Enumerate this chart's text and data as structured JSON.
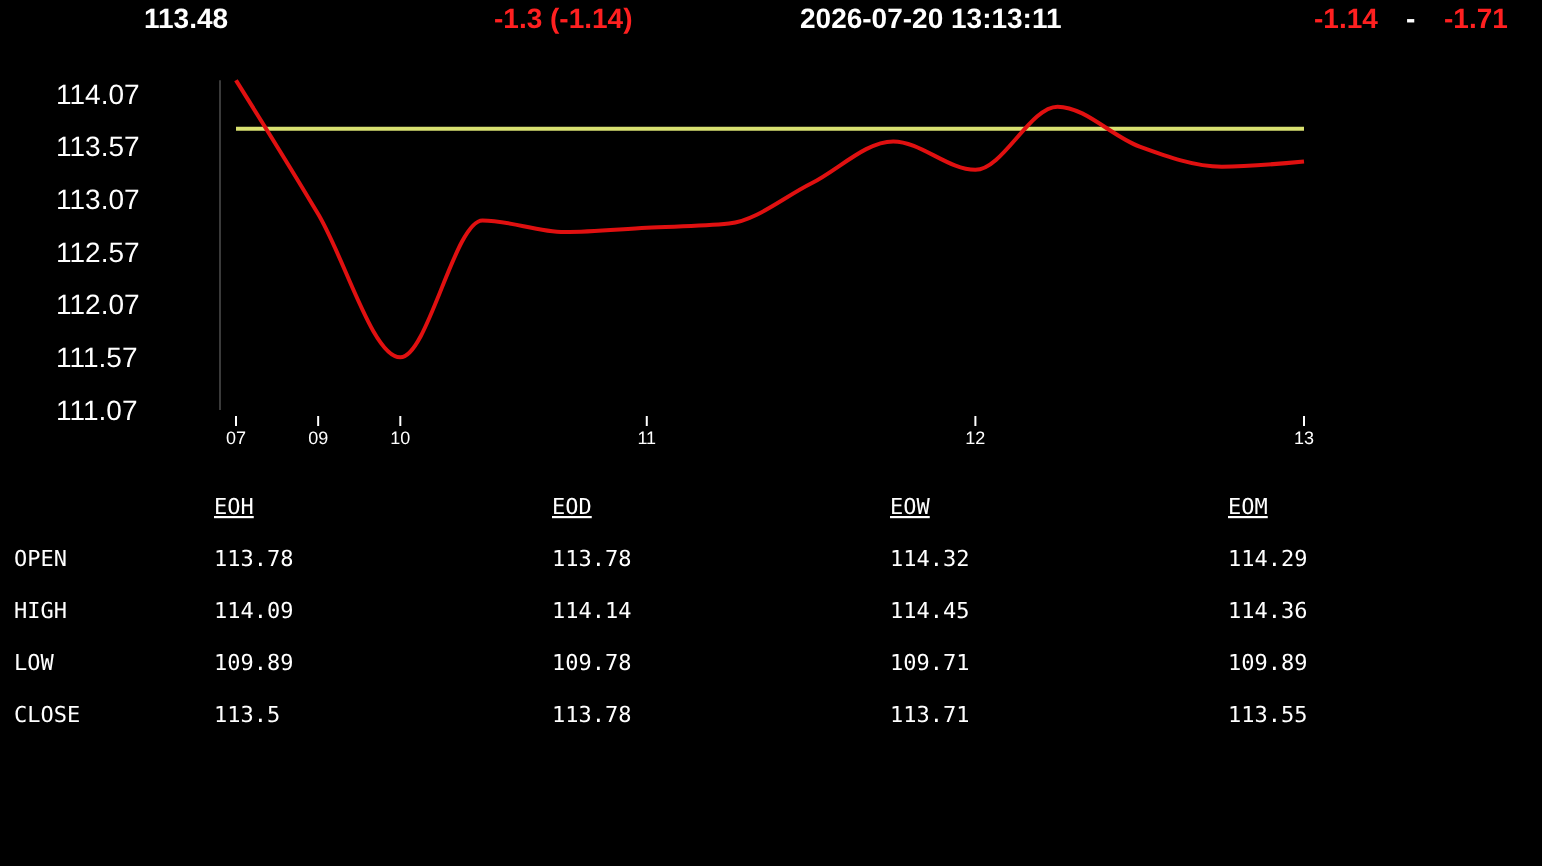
{
  "chart_data": [
    {
      "type": "line",
      "annotations": [
        "113.48",
        "-1.3  (-1.14)",
        "2026-07-20   13:13:11",
        "-1.14",
        "-",
        "-1.71"
      ],
      "categories": [
        "07",
        "09",
        "10",
        null,
        null,
        "11",
        null,
        null,
        null,
        "12",
        null,
        null,
        null,
        "13"
      ],
      "series": [
        {
          "color": "#e01010",
          "values": [
            114.2,
            112.93,
            111.57,
            112.87,
            112.76,
            112.8,
            112.84,
            113.22,
            113.62,
            113.35,
            113.95,
            113.57,
            113.38,
            113.43
          ]
        }
      ],
      "ylim": [
        111.07,
        114.2
      ],
      "yticks": [
        111.07,
        111.57,
        112.07,
        112.57,
        113.07,
        113.57,
        114.07
      ],
      "ref_lines": [
        {
          "axis": "y",
          "value": 113.74,
          "color": "#d8e070"
        }
      ],
      "grid": false
    },
    {
      "type": "other",
      "annotations": [
        "EOH",
        "EOD",
        "EOW",
        "EOM",
        "OPEN",
        "113.78",
        "113.78",
        "114.32",
        "114.29",
        "HIGH",
        "114.09",
        "114.14",
        "114.45",
        "114.36",
        "LOW",
        "109.89",
        "109.78",
        "109.71",
        "109.89",
        "CLOSE",
        "113.5",
        "113.78",
        "113.71",
        "113.55"
      ]
    }
  ]
}
